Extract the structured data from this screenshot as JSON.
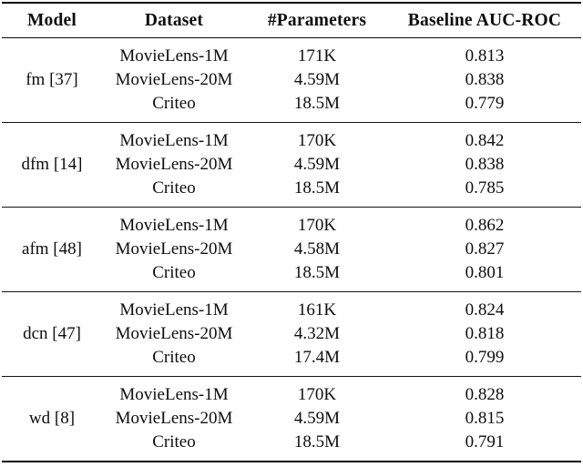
{
  "table": {
    "columns": [
      "Model",
      "Dataset",
      "#Parameters",
      "Baseline AUC-ROC"
    ],
    "groups": [
      {
        "model": "fm [37]",
        "rows": [
          {
            "dataset": "MovieLens-1M",
            "parameters": "171K",
            "auc": "0.813"
          },
          {
            "dataset": "MovieLens-20M",
            "parameters": "4.59M",
            "auc": "0.838"
          },
          {
            "dataset": "Criteo",
            "parameters": "18.5M",
            "auc": "0.779"
          }
        ]
      },
      {
        "model": "dfm [14]",
        "rows": [
          {
            "dataset": "MovieLens-1M",
            "parameters": "170K",
            "auc": "0.842"
          },
          {
            "dataset": "MovieLens-20M",
            "parameters": "4.59M",
            "auc": "0.838"
          },
          {
            "dataset": "Criteo",
            "parameters": "18.5M",
            "auc": "0.785"
          }
        ]
      },
      {
        "model": "afm [48]",
        "rows": [
          {
            "dataset": "MovieLens-1M",
            "parameters": "170K",
            "auc": "0.862"
          },
          {
            "dataset": "MovieLens-20M",
            "parameters": "4.58M",
            "auc": "0.827"
          },
          {
            "dataset": "Criteo",
            "parameters": "18.5M",
            "auc": "0.801"
          }
        ]
      },
      {
        "model": "dcn [47]",
        "rows": [
          {
            "dataset": "MovieLens-1M",
            "parameters": "161K",
            "auc": "0.824"
          },
          {
            "dataset": "MovieLens-20M",
            "parameters": "4.32M",
            "auc": "0.818"
          },
          {
            "dataset": "Criteo",
            "parameters": "17.4M",
            "auc": "0.799"
          }
        ]
      },
      {
        "model": "wd [8]",
        "rows": [
          {
            "dataset": "MovieLens-1M",
            "parameters": "170K",
            "auc": "0.828"
          },
          {
            "dataset": "MovieLens-20M",
            "parameters": "4.59M",
            "auc": "0.815"
          },
          {
            "dataset": "Criteo",
            "parameters": "18.5M",
            "auc": "0.791"
          }
        ]
      }
    ],
    "colors": {
      "text": "#0e0e0e",
      "background": "#ffffff",
      "rule": "#0a0a0a"
    }
  }
}
